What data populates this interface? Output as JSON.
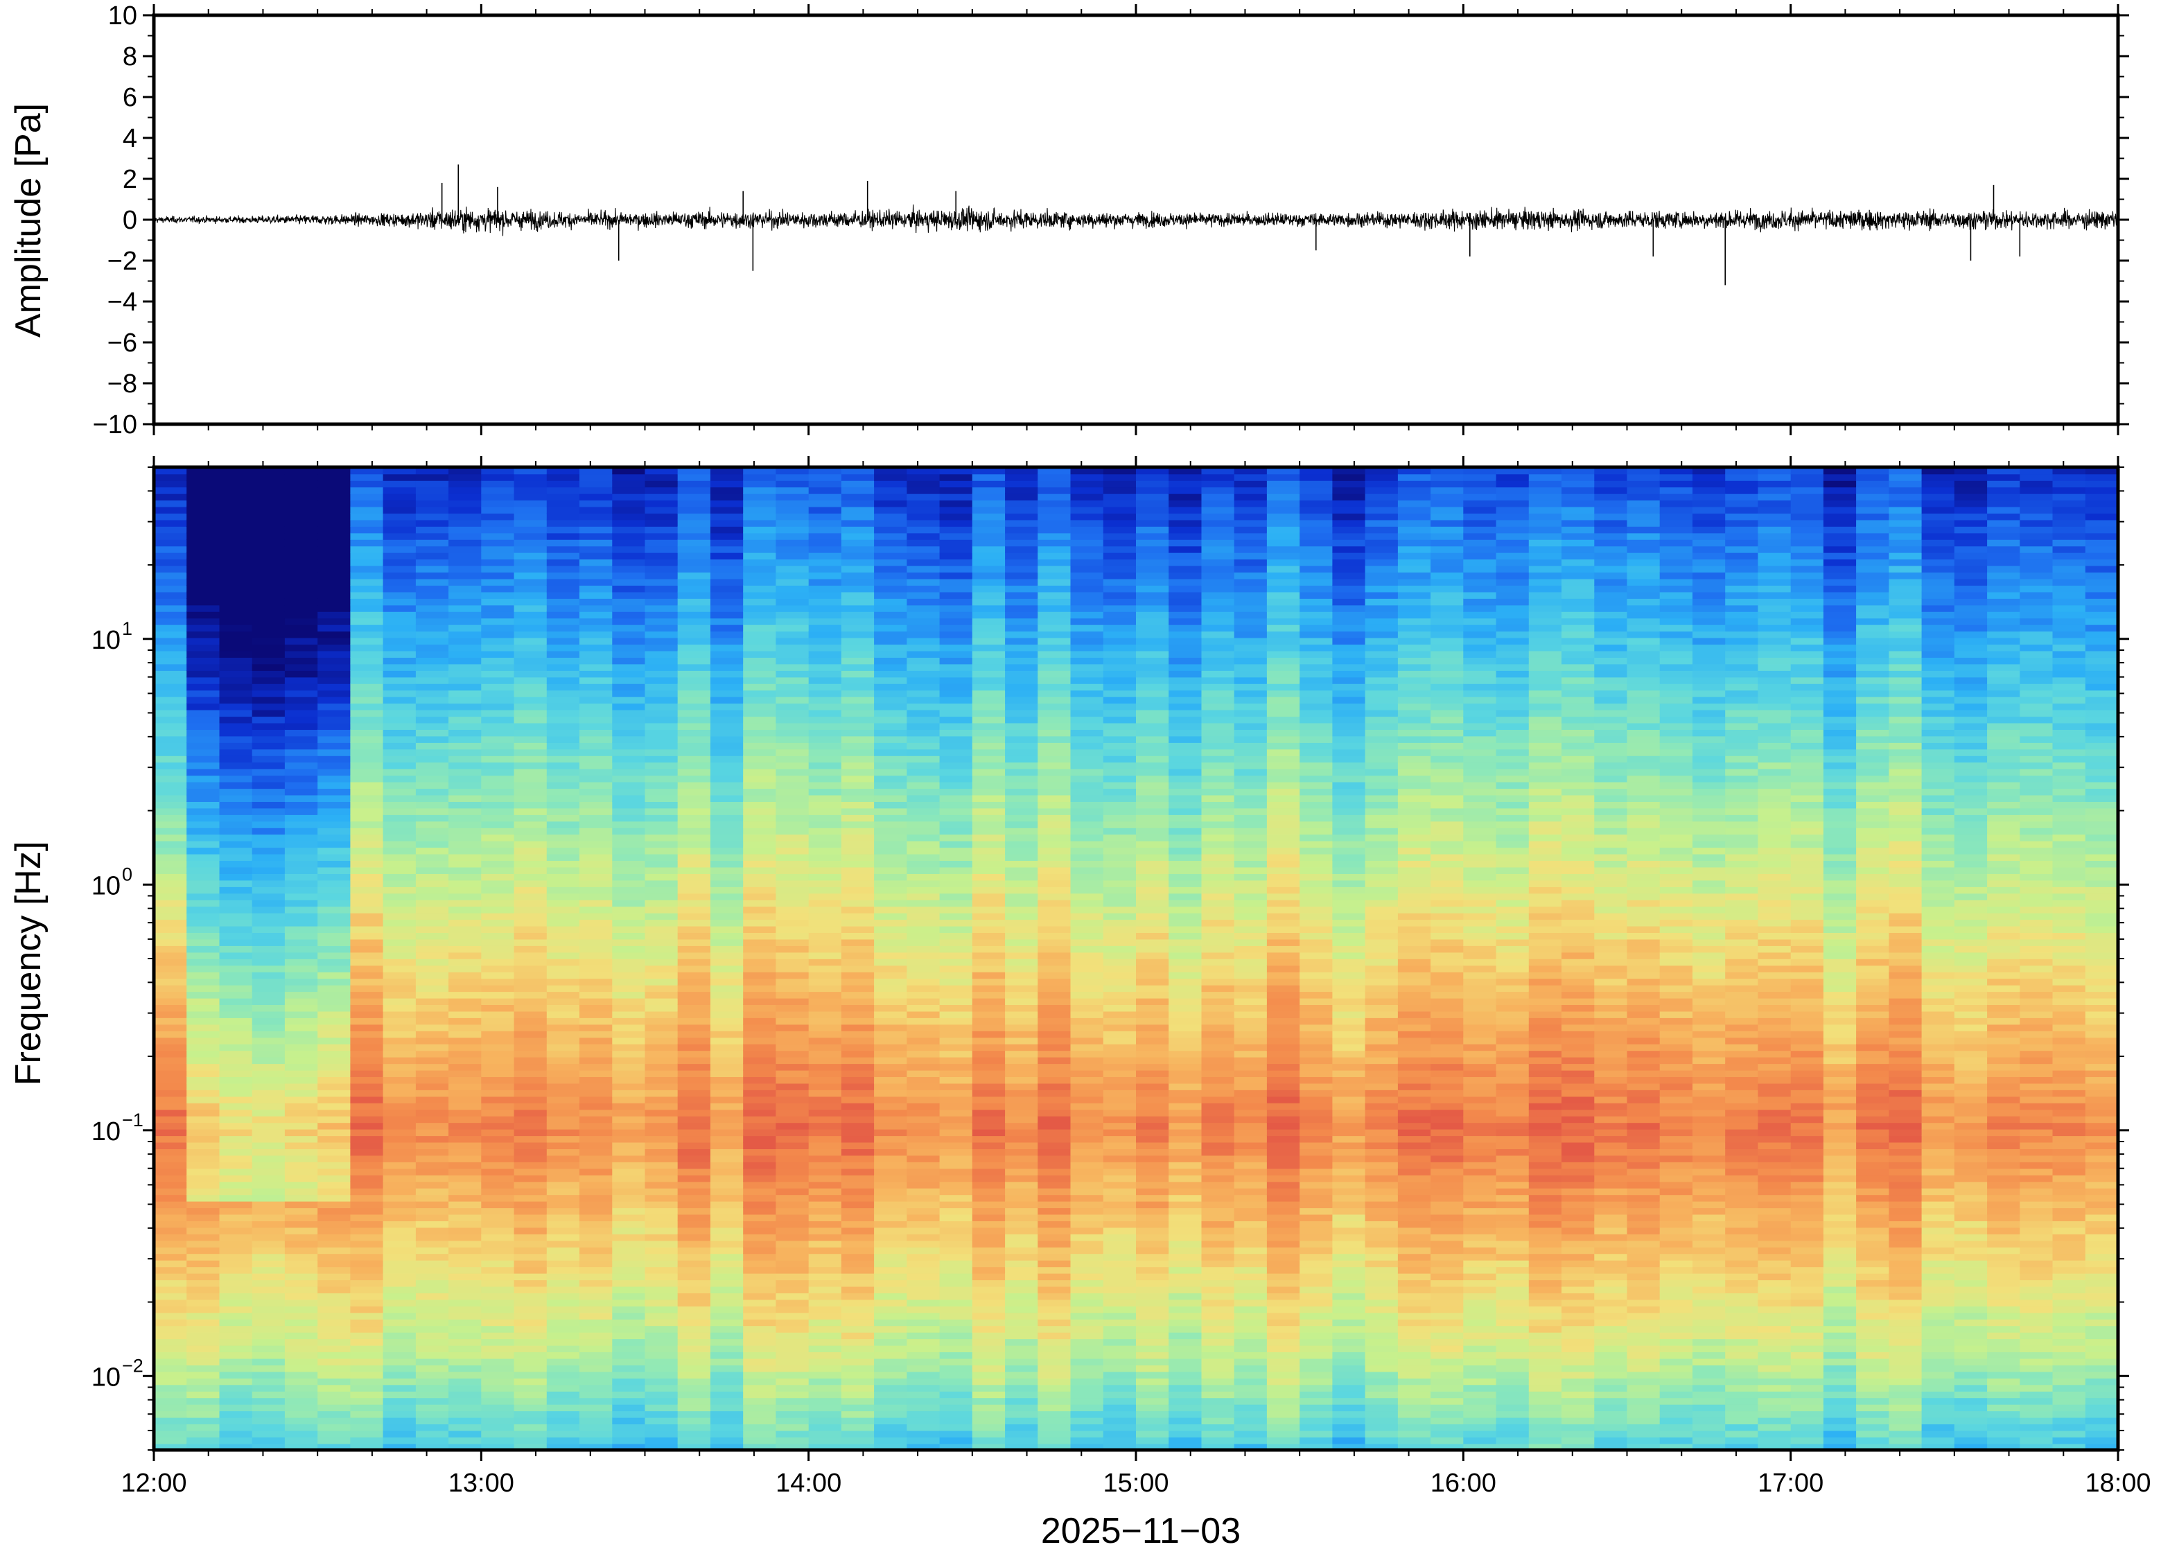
{
  "chart_data": [
    {
      "type": "line",
      "ylabel": "Amplitude [Pa]",
      "ylim": [
        -10,
        10
      ],
      "yticks": [
        {
          "v": 10,
          "label": "10"
        },
        {
          "v": 8,
          "label": "8"
        },
        {
          "v": 6,
          "label": "6"
        },
        {
          "v": 4,
          "label": "4"
        },
        {
          "v": 2,
          "label": "2"
        },
        {
          "v": 0,
          "label": "0"
        },
        {
          "v": -2,
          "label": "−2"
        },
        {
          "v": -4,
          "label": "−4"
        },
        {
          "v": -6,
          "label": "−6"
        },
        {
          "v": -8,
          "label": "−8"
        },
        {
          "v": -10,
          "label": "−10"
        }
      ],
      "xlim": [
        "12:00",
        "18:00"
      ],
      "trace_color": "#000000",
      "grid": false,
      "noise_envelope": {
        "time_hours": [
          12.0,
          12.25,
          12.5,
          12.75,
          12.9,
          13.0,
          13.25,
          13.5,
          13.75,
          14.0,
          14.25,
          14.5,
          14.75,
          15.0,
          15.25,
          15.5,
          15.75,
          16.0,
          16.25,
          16.5,
          16.75,
          17.0,
          17.25,
          17.5,
          17.75,
          18.0
        ],
        "amplitude_pa": [
          0.2,
          0.2,
          0.3,
          0.4,
          0.7,
          0.7,
          0.5,
          0.45,
          0.55,
          0.5,
          0.55,
          0.7,
          0.5,
          0.45,
          0.4,
          0.4,
          0.45,
          0.6,
          0.6,
          0.55,
          0.55,
          0.6,
          0.6,
          0.55,
          0.55,
          0.55
        ]
      },
      "spikes": [
        {
          "t": 12.93,
          "v": 2.7
        },
        {
          "t": 12.88,
          "v": 1.8
        },
        {
          "t": 13.05,
          "v": 1.6
        },
        {
          "t": 13.42,
          "v": -2.0
        },
        {
          "t": 13.83,
          "v": -2.5
        },
        {
          "t": 13.8,
          "v": 1.4
        },
        {
          "t": 14.18,
          "v": 1.9
        },
        {
          "t": 14.45,
          "v": 1.4
        },
        {
          "t": 15.55,
          "v": -1.5
        },
        {
          "t": 16.02,
          "v": -1.8
        },
        {
          "t": 16.58,
          "v": -1.8
        },
        {
          "t": 16.8,
          "v": -3.2
        },
        {
          "t": 17.62,
          "v": 1.7
        },
        {
          "t": 17.55,
          "v": -2.0
        },
        {
          "t": 17.7,
          "v": -1.8
        }
      ]
    },
    {
      "type": "heatmap",
      "ylabel": "Frequency [Hz]",
      "xlabel": "2025−11−03",
      "yscale": "log",
      "ylim_hz": [
        0.005,
        50
      ],
      "yticks": [
        {
          "v": 10,
          "base": "10",
          "exp": "1"
        },
        {
          "v": 1,
          "base": "10",
          "exp": "0"
        },
        {
          "v": 0.1,
          "base": "10",
          "exp": "−1"
        },
        {
          "v": 0.01,
          "base": "10",
          "exp": "−2"
        }
      ],
      "xticks": [
        {
          "h": 12,
          "label": "12:00"
        },
        {
          "h": 13,
          "label": "13:00"
        },
        {
          "h": 14,
          "label": "14:00"
        },
        {
          "h": 15,
          "label": "15:00"
        },
        {
          "h": 16,
          "label": "16:00"
        },
        {
          "h": 17,
          "label": "17:00"
        },
        {
          "h": 18,
          "label": "18:00"
        }
      ],
      "xlim_hours": [
        12,
        18
      ],
      "colormap": [
        "#0a0a78",
        "#0b2fd0",
        "#1e6ff0",
        "#2cb0f5",
        "#5ad6e0",
        "#8ee8b8",
        "#c8f08c",
        "#f2e07a",
        "#f7b35e",
        "#f3894c",
        "#e45a46"
      ],
      "time_bins": 60,
      "quiet_interval_hours": [
        12.1,
        12.6
      ],
      "energy_peak_frequency_hz": 0.1
    }
  ]
}
